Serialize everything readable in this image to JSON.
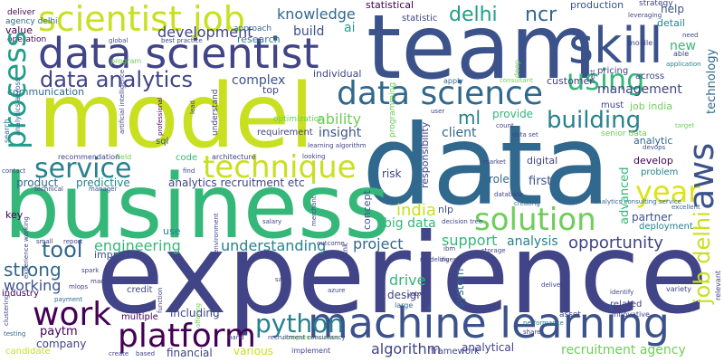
{
  "palette": {
    "background": "#ffffff",
    "purple": "#440154",
    "indigo": "#3b528b",
    "navy": "#414487",
    "blue": "#31688e",
    "teal": "#26828e",
    "cyan": "#1f9e89",
    "green": "#35b779",
    "lime": "#6ece58",
    "yellow": "#c8e020",
    "brightyellow": "#dde318"
  },
  "words": [
    {
      "text": "data",
      "color": "#31688e"
    },
    {
      "text": "experience",
      "color": "#414487"
    },
    {
      "text": "business",
      "color": "#35b779"
    },
    {
      "text": "team",
      "color": "#3b528b"
    },
    {
      "text": "model",
      "color": "#c8e020"
    },
    {
      "text": "data scientist",
      "color": "#414487"
    },
    {
      "text": "machine learning",
      "color": "#3b528b"
    },
    {
      "text": "data science",
      "color": "#31688e"
    },
    {
      "text": "scientist job",
      "color": "#c8e020"
    },
    {
      "text": "skill",
      "color": "#3b528b"
    },
    {
      "text": "technique",
      "color": "#c8e020"
    },
    {
      "text": "platform",
      "color": "#440154"
    },
    {
      "text": "work",
      "color": "#440154"
    },
    {
      "text": "solution",
      "color": "#6ece58"
    },
    {
      "text": "service",
      "color": "#26828e"
    },
    {
      "text": "data analytics",
      "color": "#414487"
    },
    {
      "text": "python",
      "color": "#26828e"
    },
    {
      "text": "process",
      "color": "#1f9e89"
    },
    {
      "text": "using",
      "color": "#35b779"
    },
    {
      "text": "building",
      "color": "#26828e"
    },
    {
      "text": "aws",
      "color": "#3b528b"
    },
    {
      "text": "year",
      "color": "#dde318"
    },
    {
      "text": "delhi",
      "color": "#1f9e89"
    },
    {
      "text": "ncr",
      "color": "#31688e"
    },
    {
      "text": "knowledge",
      "color": "#31688e"
    },
    {
      "text": "development",
      "color": "#414487"
    },
    {
      "text": "management",
      "color": "#414487"
    },
    {
      "text": "job delhi",
      "color": "#c8e020"
    },
    {
      "text": "tool",
      "color": "#31688e"
    },
    {
      "text": "strong",
      "color": "#31688e"
    },
    {
      "text": "engineering",
      "color": "#35b779"
    },
    {
      "text": "understanding",
      "color": "#26828e"
    },
    {
      "text": "opportunity",
      "color": "#414487"
    },
    {
      "text": "analysis",
      "color": "#26828e"
    },
    {
      "text": "project",
      "color": "#31688e"
    },
    {
      "text": "support",
      "color": "#35b779"
    },
    {
      "text": "india",
      "color": "#c8e020"
    },
    {
      "text": "ml",
      "color": "#26828e"
    },
    {
      "text": "ability",
      "color": "#6ece58"
    },
    {
      "text": "insight",
      "color": "#3b528b"
    },
    {
      "text": "client",
      "color": "#31688e"
    },
    {
      "text": "algorithm",
      "color": "#414487"
    },
    {
      "text": "recruitment agency",
      "color": "#6ece58"
    },
    {
      "text": "working",
      "color": "#3b528b"
    },
    {
      "text": "drive",
      "color": "#35b779"
    },
    {
      "text": "big data",
      "color": "#35b779"
    },
    {
      "text": "new",
      "color": "#35b779"
    },
    {
      "text": "complex",
      "color": "#3b528b"
    },
    {
      "text": "build",
      "color": "#3b528b"
    },
    {
      "text": "ai",
      "color": "#1f9e89"
    },
    {
      "text": "analytics recruitment etc",
      "color": "#414487"
    },
    {
      "text": "paytm",
      "color": "#440154"
    },
    {
      "text": "company",
      "color": "#414487"
    },
    {
      "text": "product",
      "color": "#31688e"
    },
    {
      "text": "predictive",
      "color": "#26828e"
    },
    {
      "text": "partner",
      "color": "#3b528b"
    },
    {
      "text": "deployment",
      "color": "#26828e"
    },
    {
      "text": "various",
      "color": "#c8e020"
    },
    {
      "text": "financial",
      "color": "#414487"
    },
    {
      "text": "including",
      "color": "#414487"
    },
    {
      "text": "analytical",
      "color": "#414487"
    },
    {
      "text": "design",
      "color": "#414487"
    },
    {
      "text": "first",
      "color": "#3b528b"
    },
    {
      "text": "role",
      "color": "#31688e"
    },
    {
      "text": "digital",
      "color": "#414487"
    },
    {
      "text": "develop",
      "color": "#440154"
    },
    {
      "text": "problem",
      "color": "#26828e"
    },
    {
      "text": "advanced",
      "color": "#35b779"
    },
    {
      "text": "analytic",
      "color": "#31688e"
    },
    {
      "text": "help",
      "color": "#3b528b"
    },
    {
      "text": "detail",
      "color": "#26828e"
    },
    {
      "text": "technology",
      "color": "#31688e"
    },
    {
      "text": "job india",
      "color": "#6ece58"
    },
    {
      "text": "must",
      "color": "#414487"
    },
    {
      "text": "provide",
      "color": "#35b779"
    },
    {
      "text": "customer",
      "color": "#414487"
    },
    {
      "text": "requirement",
      "color": "#414487"
    },
    {
      "text": "statistical",
      "color": "#440154"
    },
    {
      "text": "statistic",
      "color": "#414487"
    },
    {
      "text": "individual",
      "color": "#414487"
    },
    {
      "text": "research",
      "color": "#26828e"
    },
    {
      "text": "top",
      "color": "#414487"
    },
    {
      "text": "communication",
      "color": "#31688e"
    },
    {
      "text": "key",
      "color": "#440154"
    },
    {
      "text": "improve",
      "color": "#3b528b"
    },
    {
      "text": "use",
      "color": "#26828e"
    },
    {
      "text": "sql",
      "color": "#3b528b"
    },
    {
      "text": "code",
      "color": "#35b779"
    },
    {
      "text": "system",
      "color": "#31688e"
    },
    {
      "text": "responsibility",
      "color": "#414487"
    },
    {
      "text": "information",
      "color": "#414487"
    },
    {
      "text": "nlp",
      "color": "#3b528b"
    },
    {
      "text": "risk",
      "color": "#414487"
    },
    {
      "text": "concept",
      "color": "#3b528b"
    },
    {
      "text": "related",
      "color": "#414487"
    },
    {
      "text": "credit",
      "color": "#414487"
    },
    {
      "text": "multiple",
      "color": "#440154"
    },
    {
      "text": "industry",
      "color": "#440154"
    },
    {
      "text": "candidate",
      "color": "#c8e020"
    },
    {
      "text": "production",
      "color": "#3b528b"
    },
    {
      "text": "strategy",
      "color": "#414487"
    },
    {
      "text": "across",
      "color": "#414487"
    },
    {
      "text": "pricing",
      "color": "#414487"
    },
    {
      "text": "deliver",
      "color": "#440154"
    },
    {
      "text": "agency delhi",
      "color": "#31688e"
    },
    {
      "text": "value",
      "color": "#440154"
    },
    {
      "text": "operation",
      "color": "#440154"
    },
    {
      "text": "approach",
      "color": "#31688e"
    },
    {
      "text": "analytics across",
      "color": "#31688e"
    },
    {
      "text": "optimization",
      "color": "#6ece58"
    },
    {
      "text": "search",
      "color": "#31688e"
    },
    {
      "text": "understand",
      "color": "#414487"
    },
    {
      "text": "program",
      "color": "#6ece58"
    },
    {
      "text": "global",
      "color": "#3b528b"
    },
    {
      "text": "best practice",
      "color": "#414487"
    },
    {
      "text": "professional",
      "color": "#440154"
    },
    {
      "text": "field",
      "color": "#6ece58"
    },
    {
      "text": "recommendation",
      "color": "#414487"
    },
    {
      "text": "technical",
      "color": "#414487"
    },
    {
      "text": "contact",
      "color": "#414487"
    },
    {
      "text": "manager",
      "color": "#3b528b"
    },
    {
      "text": "architecture",
      "color": "#414487"
    },
    {
      "text": "looking",
      "color": "#414487"
    },
    {
      "text": "learning algorithm",
      "color": "#414487"
    },
    {
      "text": "programming",
      "color": "#6ece58"
    },
    {
      "text": "apply",
      "color": "#31688e"
    },
    {
      "text": "consultant",
      "color": "#6ece58"
    },
    {
      "text": "data set",
      "color": "#414487"
    },
    {
      "text": "senior data",
      "color": "#6ece58"
    },
    {
      "text": "devops",
      "color": "#3b528b"
    },
    {
      "text": "application",
      "color": "#26828e"
    },
    {
      "text": "leveraging",
      "color": "#414487"
    },
    {
      "text": "mobile",
      "color": "#414487"
    },
    {
      "text": "able",
      "color": "#414487"
    },
    {
      "text": "need",
      "color": "#414487"
    },
    {
      "text": "lead",
      "color": "#414487"
    },
    {
      "text": "artificial intelligence",
      "color": "#414487"
    },
    {
      "text": "creating",
      "color": "#31688e"
    },
    {
      "text": "analytics consulting service",
      "color": "#31688e"
    },
    {
      "text": "storage",
      "color": "#414487"
    },
    {
      "text": "decision tree",
      "color": "#414487"
    },
    {
      "text": "database",
      "color": "#414487"
    },
    {
      "text": "market",
      "color": "#414487"
    },
    {
      "text": "modeling",
      "color": "#414487"
    },
    {
      "text": "ibm",
      "color": "#414487"
    },
    {
      "text": "diversity",
      "color": "#414487"
    },
    {
      "text": "outcome",
      "color": "#414487"
    },
    {
      "text": "salary",
      "color": "#414487"
    },
    {
      "text": "report",
      "color": "#414487"
    },
    {
      "text": "spark",
      "color": "#414487"
    },
    {
      "text": "mlops",
      "color": "#414487"
    },
    {
      "text": "clustering",
      "color": "#414487"
    },
    {
      "text": "testing",
      "color": "#31688e"
    },
    {
      "text": "payment",
      "color": "#31688e"
    },
    {
      "text": "create",
      "color": "#414487"
    },
    {
      "text": "hand",
      "color": "#414487"
    },
    {
      "text": "computer science",
      "color": "#6ece58"
    },
    {
      "text": "recruitment consultancy",
      "color": "#414487"
    },
    {
      "text": "implement",
      "color": "#414487"
    },
    {
      "text": "framework",
      "color": "#414487"
    },
    {
      "text": "large",
      "color": "#31688e"
    },
    {
      "text": "yabx",
      "color": "#414487"
    },
    {
      "text": "azure",
      "color": "#414487"
    },
    {
      "text": "performance",
      "color": "#26828e"
    },
    {
      "text": "share",
      "color": "#414487"
    },
    {
      "text": "delivery",
      "color": "#414487"
    },
    {
      "text": "asset",
      "color": "#414487"
    },
    {
      "text": "innovative",
      "color": "#414487"
    },
    {
      "text": "identify",
      "color": "#414487"
    },
    {
      "text": "excellent",
      "color": "#31688e"
    },
    {
      "text": "variety",
      "color": "#414487"
    },
    {
      "text": "target",
      "color": "#6ece58"
    },
    {
      "text": "relevant",
      "color": "#414487"
    },
    {
      "text": "experience working",
      "color": "#414487"
    },
    {
      "text": "environment",
      "color": "#414487"
    },
    {
      "text": "merchant",
      "color": "#414487"
    },
    {
      "text": "offering",
      "color": "#6ece58"
    },
    {
      "text": "function",
      "color": "#414487"
    },
    {
      "text": "stakeholder",
      "color": "#414487"
    },
    {
      "text": "gathering",
      "color": "#414487"
    },
    {
      "text": "ctc",
      "color": "#26828e"
    },
    {
      "text": "ncr",
      "color": "#414487"
    },
    {
      "text": "plan",
      "color": "#414487"
    },
    {
      "text": "cost",
      "color": "#414487"
    },
    {
      "text": "best",
      "color": "#414487"
    },
    {
      "text": "bank",
      "color": "#414487"
    },
    {
      "text": "find",
      "color": "#414487"
    },
    {
      "text": "reference",
      "color": "#414487"
    },
    {
      "text": "problemsolving",
      "color": "#6ece58"
    },
    {
      "text": "machine",
      "color": "#414487"
    },
    {
      "text": "small",
      "color": "#414487"
    },
    {
      "text": "based",
      "color": "#414487"
    },
    {
      "text": "analyze",
      "color": "#414487"
    },
    {
      "text": "deep",
      "color": "#6ece58"
    },
    {
      "text": "user",
      "color": "#414487"
    },
    {
      "text": "count",
      "color": "#414487"
    },
    {
      "text": "safe",
      "color": "#414487"
    }
  ]
}
